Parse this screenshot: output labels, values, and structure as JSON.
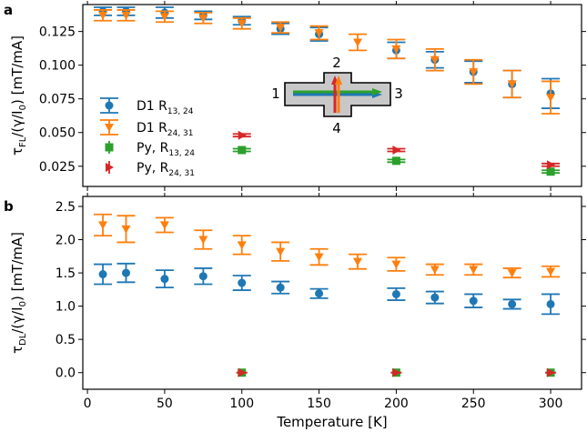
{
  "figure": {
    "x_axis_label": "Temperature [K]",
    "x_ticks": [
      "0",
      "50",
      "100",
      "150",
      "200",
      "250",
      "300"
    ],
    "legend": [
      {
        "label": "D1 R",
        "sub": "13, 24",
        "series_ref": "d1_r1324"
      },
      {
        "label": "D1 R",
        "sub": "24, 31",
        "series_ref": "d1_r2431"
      },
      {
        "label": "Py, R",
        "sub": "13, 24",
        "series_ref": "py_r1324"
      },
      {
        "label": "Py, R",
        "sub": "24, 31",
        "series_ref": "py_r2431"
      }
    ],
    "inset_labels": {
      "top": "2",
      "left": "1",
      "right": "3",
      "bottom": "4"
    }
  },
  "chart_data": [
    {
      "type": "scatter",
      "panel_label": "a",
      "ylabel_main": "τ",
      "ylabel_sub": "FL",
      "ylabel_rest": "/(γ/I",
      "ylabel_sub2": "0",
      "ylabel_end": ") [mT/mA]",
      "y_ticks": [
        "0.025",
        "0.050",
        "0.075",
        "0.100",
        "0.125"
      ],
      "xlim": [
        -3,
        320
      ],
      "ylim": [
        0.01,
        0.145
      ],
      "grid": false,
      "series": [
        {
          "key": "d1_r1324",
          "color": "#1f77b4",
          "marker": "circle",
          "points": [
            {
              "x": 10,
              "y": 0.14,
              "err": 0.003
            },
            {
              "x": 25,
              "y": 0.14,
              "err": 0.003
            },
            {
              "x": 50,
              "y": 0.139,
              "err": 0.004
            },
            {
              "x": 75,
              "y": 0.137,
              "err": 0.003
            },
            {
              "x": 100,
              "y": 0.133,
              "err": 0.003
            },
            {
              "x": 125,
              "y": 0.127,
              "err": 0.004
            },
            {
              "x": 150,
              "y": 0.123,
              "err": 0.005
            },
            {
              "x": 200,
              "y": 0.111,
              "err": 0.006
            },
            {
              "x": 225,
              "y": 0.104,
              "err": 0.006
            },
            {
              "x": 250,
              "y": 0.095,
              "err": 0.008
            },
            {
              "x": 275,
              "y": 0.086,
              "err": 0.01
            },
            {
              "x": 300,
              "y": 0.079,
              "err": 0.011
            }
          ]
        },
        {
          "key": "d1_r2431",
          "color": "#ff7f0e",
          "marker": "triangle-down",
          "points": [
            {
              "x": 10,
              "y": 0.137,
              "err": 0.004
            },
            {
              "x": 25,
              "y": 0.137,
              "err": 0.004
            },
            {
              "x": 50,
              "y": 0.136,
              "err": 0.004
            },
            {
              "x": 75,
              "y": 0.135,
              "err": 0.004
            },
            {
              "x": 100,
              "y": 0.131,
              "err": 0.004
            },
            {
              "x": 125,
              "y": 0.128,
              "err": 0.004
            },
            {
              "x": 150,
              "y": 0.124,
              "err": 0.005
            },
            {
              "x": 175,
              "y": 0.117,
              "err": 0.006
            },
            {
              "x": 200,
              "y": 0.112,
              "err": 0.007
            },
            {
              "x": 225,
              "y": 0.104,
              "err": 0.008
            },
            {
              "x": 250,
              "y": 0.095,
              "err": 0.009
            },
            {
              "x": 275,
              "y": 0.086,
              "err": 0.01
            },
            {
              "x": 300,
              "y": 0.076,
              "err": 0.012
            }
          ]
        },
        {
          "key": "py_r1324",
          "color": "#2ca02c",
          "marker": "square",
          "points": [
            {
              "x": 100,
              "y": 0.037,
              "err": 0.001
            },
            {
              "x": 200,
              "y": 0.029,
              "err": 0.001
            },
            {
              "x": 300,
              "y": 0.021,
              "err": 0.001
            }
          ]
        },
        {
          "key": "py_r2431",
          "color": "#d62728",
          "marker": "triangle-right",
          "points": [
            {
              "x": 100,
              "y": 0.048,
              "err": 0.001
            },
            {
              "x": 200,
              "y": 0.037,
              "err": 0.001
            },
            {
              "x": 300,
              "y": 0.026,
              "err": 0.001
            }
          ]
        }
      ]
    },
    {
      "type": "scatter",
      "panel_label": "b",
      "ylabel_main": "τ",
      "ylabel_sub": "DL",
      "ylabel_rest": "/(γ/I",
      "ylabel_sub2": "0",
      "ylabel_end": ") [mT/mA]",
      "y_ticks": [
        "0.0",
        "0.5",
        "1.0",
        "1.5",
        "2.0",
        "2.5"
      ],
      "xlim": [
        -3,
        320
      ],
      "ylim": [
        -0.25,
        2.65
      ],
      "grid": false,
      "series": [
        {
          "key": "d1_r1324",
          "color": "#1f77b4",
          "marker": "circle",
          "points": [
            {
              "x": 10,
              "y": 1.48,
              "err": 0.15
            },
            {
              "x": 25,
              "y": 1.5,
              "err": 0.14
            },
            {
              "x": 50,
              "y": 1.41,
              "err": 0.13
            },
            {
              "x": 75,
              "y": 1.45,
              "err": 0.12
            },
            {
              "x": 100,
              "y": 1.35,
              "err": 0.11
            },
            {
              "x": 125,
              "y": 1.28,
              "err": 0.09
            },
            {
              "x": 150,
              "y": 1.19,
              "err": 0.07
            },
            {
              "x": 200,
              "y": 1.18,
              "err": 0.09
            },
            {
              "x": 225,
              "y": 1.13,
              "err": 0.09
            },
            {
              "x": 250,
              "y": 1.08,
              "err": 0.1
            },
            {
              "x": 275,
              "y": 1.03,
              "err": 0.07
            },
            {
              "x": 300,
              "y": 1.03,
              "err": 0.15
            }
          ]
        },
        {
          "key": "d1_r2431",
          "color": "#ff7f0e",
          "marker": "triangle-down",
          "points": [
            {
              "x": 10,
              "y": 2.22,
              "err": 0.16
            },
            {
              "x": 25,
              "y": 2.16,
              "err": 0.2
            },
            {
              "x": 50,
              "y": 2.22,
              "err": 0.11
            },
            {
              "x": 75,
              "y": 2.0,
              "err": 0.14
            },
            {
              "x": 100,
              "y": 1.92,
              "err": 0.14
            },
            {
              "x": 125,
              "y": 1.82,
              "err": 0.14
            },
            {
              "x": 150,
              "y": 1.74,
              "err": 0.12
            },
            {
              "x": 175,
              "y": 1.67,
              "err": 0.11
            },
            {
              "x": 200,
              "y": 1.63,
              "err": 0.1
            },
            {
              "x": 225,
              "y": 1.55,
              "err": 0.08
            },
            {
              "x": 250,
              "y": 1.55,
              "err": 0.08
            },
            {
              "x": 275,
              "y": 1.5,
              "err": 0.07
            },
            {
              "x": 300,
              "y": 1.52,
              "err": 0.08
            }
          ]
        },
        {
          "key": "py_r1324",
          "color": "#2ca02c",
          "marker": "square",
          "points": [
            {
              "x": 100,
              "y": 0.0,
              "err": 0.0
            },
            {
              "x": 200,
              "y": 0.0,
              "err": 0.0
            },
            {
              "x": 300,
              "y": 0.0,
              "err": 0.0
            }
          ]
        },
        {
          "key": "py_r2431",
          "color": "#d62728",
          "marker": "triangle-right",
          "points": [
            {
              "x": 100,
              "y": 0.0,
              "err": 0.0
            },
            {
              "x": 200,
              "y": 0.0,
              "err": 0.0
            },
            {
              "x": 300,
              "y": 0.0,
              "err": 0.0
            }
          ]
        }
      ]
    }
  ]
}
